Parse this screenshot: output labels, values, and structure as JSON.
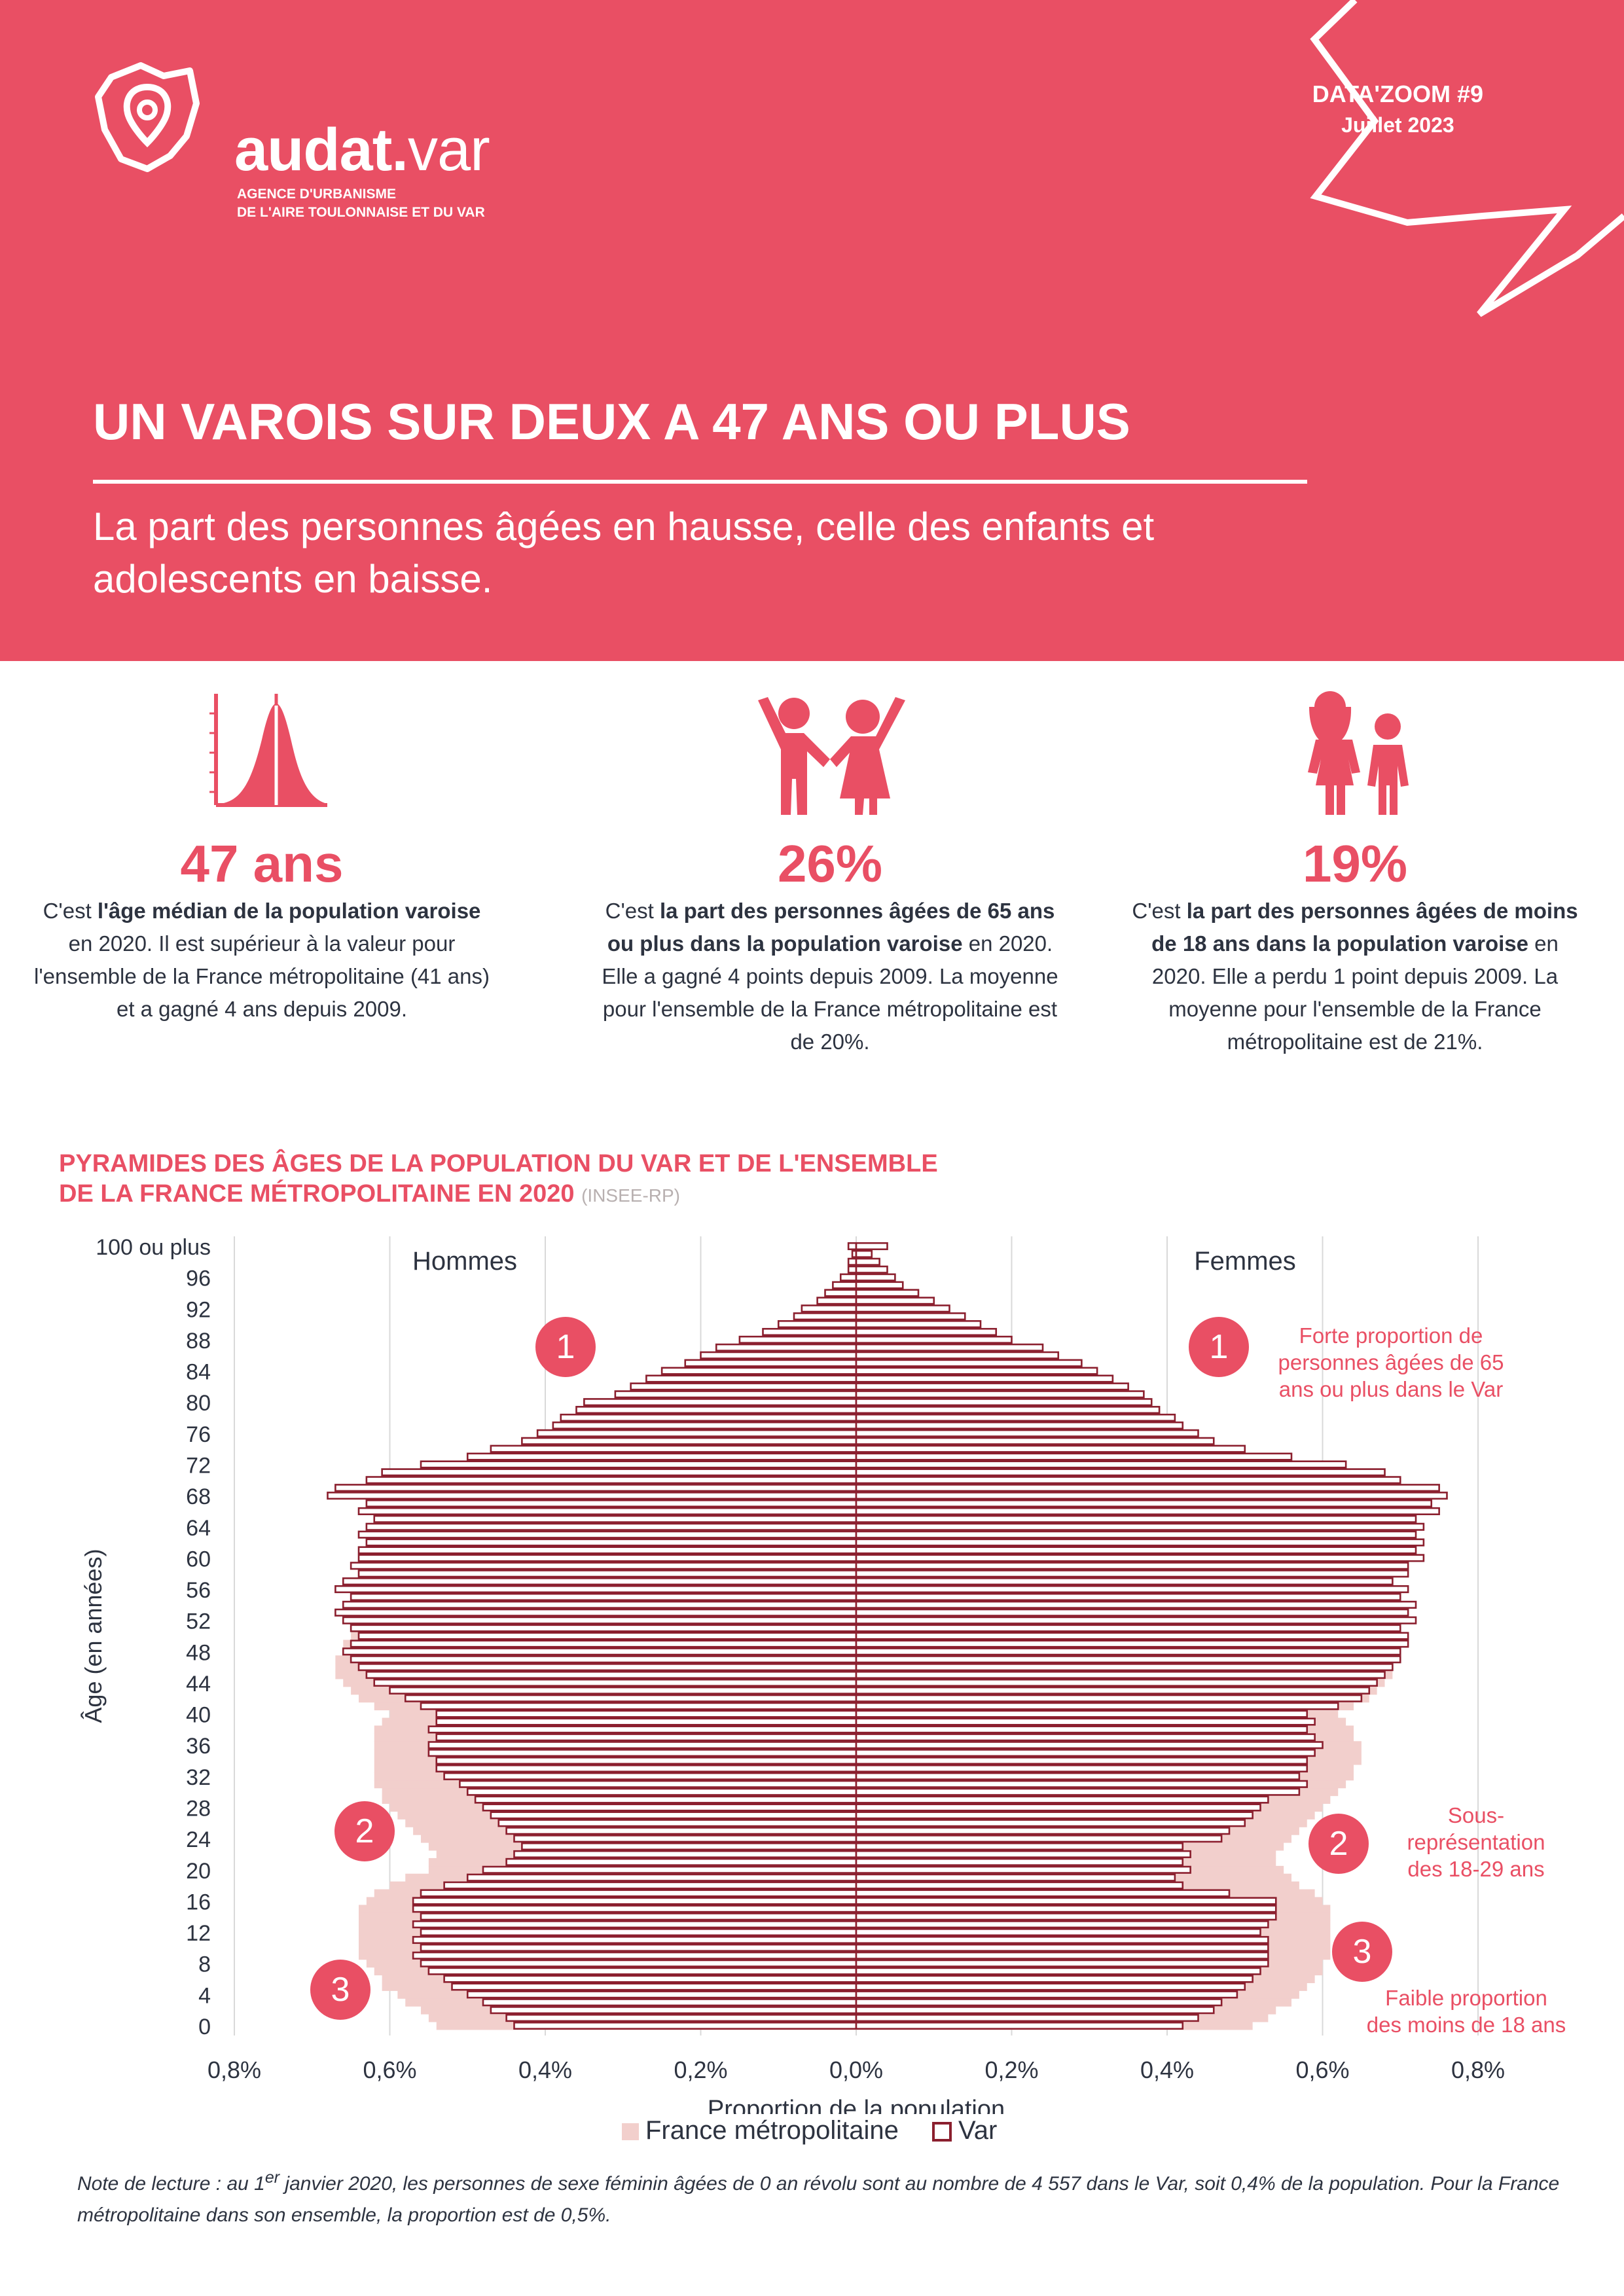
{
  "header": {
    "logo": {
      "name_main": "audat.",
      "name_light": "var",
      "tagline_1": "AGENCE D'URBANISME",
      "tagline_2": "DE L'AIRE TOULONNAISE ET DU VAR",
      "icon": "map-pin-logo-icon"
    },
    "series_label": "DATA'ZOOM #9",
    "date": "Juillet 2023",
    "title": "UN VAROIS SUR DEUX A 47 ANS OU PLUS",
    "subtitle": "La part des personnes âgées en hausse, celle des enfants et adolescents en baisse."
  },
  "stats": [
    {
      "icon": "distribution-curve-icon",
      "value": "47 ans",
      "pre": "C'est ",
      "bold": "l'âge médian de la population varoise",
      "post": " en 2020. Il est supérieur à la valeur pour l'ensemble de la France métropolitaine (41 ans) et a gagné 4 ans depuis 2009."
    },
    {
      "icon": "elderly-couple-icon",
      "value": "26%",
      "pre": "C'est ",
      "bold": "la part des personnes âgées de 65 ans ou plus dans la population varoise",
      "post": " en 2020. Elle a gagné 4 points depuis 2009. La moyenne pour l'ensemble de la France métropolitaine est de 20%."
    },
    {
      "icon": "children-icon",
      "value": "19%",
      "pre": "C'est ",
      "bold": "la part des personnes âgées de moins de 18 ans dans la population varoise",
      "post": " en 2020. Elle a perdu 1 point depuis 2009. La moyenne pour l'ensemble de la France métropolitaine est de 21%."
    }
  ],
  "chart_title": {
    "line1": "PYRAMIDES DES ÂGES DE LA POPULATION DU VAR ET DE L'ENSEMBLE",
    "line2": "DE LA FRANCE MÉTROPOLITAINE EN 2020",
    "source": "(INSEE-RP)"
  },
  "colors": {
    "accent": "#e94f64",
    "france_fill": "#f2cfcc",
    "var_outline": "#8b1f2e",
    "text": "#2d3340"
  },
  "chart_data": {
    "type": "bar",
    "orientation": "horizontal-pyramid",
    "xlabel": "Proportion de la population",
    "ylabel": "Âge (en années)",
    "xlim": [
      -0.8,
      0.8
    ],
    "x_ticks": [
      "0,8%",
      "0,6%",
      "0,4%",
      "0,2%",
      "0,0%",
      "0,2%",
      "0,4%",
      "0,6%",
      "0,8%"
    ],
    "y_ticks": [
      "0",
      "4",
      "8",
      "12",
      "16",
      "20",
      "24",
      "28",
      "32",
      "36",
      "40",
      "44",
      "48",
      "52",
      "56",
      "60",
      "64",
      "68",
      "72",
      "76",
      "80",
      "84",
      "88",
      "92",
      "96",
      "100 ou plus"
    ],
    "left_label": "Hommes",
    "right_label": "Femmes",
    "grid": true,
    "legend": "bottom-center",
    "legend_entries": [
      "France métropolitaine",
      "Var"
    ],
    "ages": [
      0,
      1,
      2,
      3,
      4,
      5,
      6,
      7,
      8,
      9,
      10,
      11,
      12,
      13,
      14,
      15,
      16,
      17,
      18,
      19,
      20,
      21,
      22,
      23,
      24,
      25,
      26,
      27,
      28,
      29,
      30,
      31,
      32,
      33,
      34,
      35,
      36,
      37,
      38,
      39,
      40,
      41,
      42,
      43,
      44,
      45,
      46,
      47,
      48,
      49,
      50,
      51,
      52,
      53,
      54,
      55,
      56,
      57,
      58,
      59,
      60,
      61,
      62,
      63,
      64,
      65,
      66,
      67,
      68,
      69,
      70,
      71,
      72,
      73,
      74,
      75,
      76,
      77,
      78,
      79,
      80,
      81,
      82,
      83,
      84,
      85,
      86,
      87,
      88,
      89,
      90,
      91,
      92,
      93,
      94,
      95,
      96,
      97,
      98,
      99,
      100
    ],
    "series": [
      {
        "name": "France métropolitaine - Hommes",
        "values": [
          0.54,
          0.55,
          0.56,
          0.58,
          0.59,
          0.61,
          0.61,
          0.62,
          0.63,
          0.64,
          0.64,
          0.64,
          0.64,
          0.64,
          0.64,
          0.64,
          0.63,
          0.62,
          0.6,
          0.58,
          0.55,
          0.55,
          0.54,
          0.55,
          0.56,
          0.57,
          0.58,
          0.59,
          0.6,
          0.61,
          0.61,
          0.62,
          0.62,
          0.62,
          0.62,
          0.62,
          0.62,
          0.62,
          0.62,
          0.61,
          0.6,
          0.62,
          0.64,
          0.65,
          0.66,
          0.67,
          0.67,
          0.67,
          0.66,
          0.66,
          0.65,
          0.65,
          0.64,
          0.64,
          0.63,
          0.62,
          0.62,
          0.61,
          0.6,
          0.59,
          0.58,
          0.57,
          0.56,
          0.55,
          0.54,
          0.53,
          0.52,
          0.51,
          0.5,
          0.5,
          0.49,
          0.48,
          0.46,
          0.43,
          0.39,
          0.35,
          0.31,
          0.29,
          0.28,
          0.27,
          0.25,
          0.23,
          0.21,
          0.19,
          0.17,
          0.15,
          0.13,
          0.11,
          0.09,
          0.07,
          0.05,
          0.04,
          0.03,
          0.02,
          0.015,
          0.01,
          0.007,
          0.004,
          0.002,
          0.001,
          0.001
        ]
      },
      {
        "name": "France métropolitaine - Femmes",
        "values": [
          0.51,
          0.53,
          0.54,
          0.56,
          0.57,
          0.58,
          0.59,
          0.6,
          0.6,
          0.61,
          0.61,
          0.61,
          0.61,
          0.61,
          0.61,
          0.61,
          0.6,
          0.59,
          0.57,
          0.56,
          0.55,
          0.54,
          0.54,
          0.55,
          0.56,
          0.57,
          0.58,
          0.59,
          0.6,
          0.61,
          0.62,
          0.63,
          0.64,
          0.64,
          0.65,
          0.65,
          0.65,
          0.64,
          0.64,
          0.63,
          0.62,
          0.64,
          0.66,
          0.67,
          0.68,
          0.69,
          0.69,
          0.69,
          0.68,
          0.68,
          0.68,
          0.68,
          0.67,
          0.67,
          0.66,
          0.65,
          0.65,
          0.64,
          0.63,
          0.62,
          0.62,
          0.61,
          0.6,
          0.6,
          0.59,
          0.58,
          0.57,
          0.57,
          0.56,
          0.55,
          0.55,
          0.54,
          0.52,
          0.49,
          0.45,
          0.41,
          0.38,
          0.36,
          0.35,
          0.34,
          0.33,
          0.31,
          0.3,
          0.28,
          0.26,
          0.24,
          0.22,
          0.2,
          0.17,
          0.15,
          0.12,
          0.1,
          0.08,
          0.06,
          0.045,
          0.033,
          0.023,
          0.015,
          0.01,
          0.006,
          0.008
        ]
      },
      {
        "name": "Var - Hommes",
        "values": [
          0.44,
          0.45,
          0.47,
          0.48,
          0.5,
          0.52,
          0.53,
          0.55,
          0.56,
          0.57,
          0.56,
          0.57,
          0.56,
          0.57,
          0.56,
          0.57,
          0.57,
          0.56,
          0.53,
          0.5,
          0.48,
          0.45,
          0.44,
          0.43,
          0.44,
          0.45,
          0.46,
          0.47,
          0.48,
          0.49,
          0.5,
          0.51,
          0.53,
          0.54,
          0.54,
          0.55,
          0.55,
          0.54,
          0.55,
          0.54,
          0.54,
          0.56,
          0.58,
          0.6,
          0.62,
          0.63,
          0.64,
          0.65,
          0.66,
          0.65,
          0.64,
          0.65,
          0.66,
          0.67,
          0.66,
          0.65,
          0.67,
          0.66,
          0.64,
          0.65,
          0.64,
          0.64,
          0.63,
          0.64,
          0.63,
          0.62,
          0.64,
          0.63,
          0.68,
          0.67,
          0.63,
          0.61,
          0.56,
          0.5,
          0.47,
          0.43,
          0.41,
          0.39,
          0.38,
          0.36,
          0.35,
          0.31,
          0.29,
          0.27,
          0.25,
          0.22,
          0.2,
          0.18,
          0.15,
          0.12,
          0.1,
          0.08,
          0.07,
          0.05,
          0.04,
          0.03,
          0.02,
          0.01,
          0.01,
          0.005,
          0.01
        ]
      },
      {
        "name": "Var - Femmes",
        "values": [
          0.42,
          0.44,
          0.46,
          0.47,
          0.49,
          0.5,
          0.51,
          0.52,
          0.53,
          0.53,
          0.53,
          0.53,
          0.52,
          0.53,
          0.54,
          0.54,
          0.54,
          0.48,
          0.42,
          0.41,
          0.43,
          0.42,
          0.43,
          0.42,
          0.47,
          0.48,
          0.5,
          0.51,
          0.52,
          0.53,
          0.57,
          0.58,
          0.57,
          0.58,
          0.58,
          0.59,
          0.6,
          0.59,
          0.58,
          0.59,
          0.58,
          0.62,
          0.65,
          0.66,
          0.67,
          0.68,
          0.69,
          0.7,
          0.7,
          0.71,
          0.71,
          0.7,
          0.72,
          0.71,
          0.72,
          0.7,
          0.71,
          0.69,
          0.71,
          0.71,
          0.73,
          0.72,
          0.73,
          0.72,
          0.73,
          0.72,
          0.75,
          0.74,
          0.76,
          0.75,
          0.7,
          0.68,
          0.63,
          0.56,
          0.5,
          0.46,
          0.44,
          0.42,
          0.41,
          0.39,
          0.38,
          0.37,
          0.35,
          0.33,
          0.31,
          0.29,
          0.26,
          0.24,
          0.2,
          0.18,
          0.16,
          0.14,
          0.12,
          0.1,
          0.08,
          0.06,
          0.05,
          0.04,
          0.03,
          0.02,
          0.04
        ]
      }
    ],
    "annotations": [
      {
        "number": "1",
        "text_lines": [
          "Forte proportion de",
          "personnes âgées de 65",
          "ans ou plus dans le Var"
        ]
      },
      {
        "number": "2",
        "text_lines": [
          "Sous-",
          "représentation",
          "des 18-29 ans"
        ]
      },
      {
        "number": "3",
        "text_lines": [
          "Faible proportion",
          "des moins de 18 ans"
        ]
      }
    ]
  },
  "note": {
    "prefix": "Note de lecture : au 1",
    "sup": "er",
    "rest": " janvier 2020, les personnes de sexe féminin âgées de 0 an révolu sont au nombre de 4 557 dans le Var, soit 0,4% de la population. Pour la France métropolitaine dans son ensemble, la proportion est de 0,5%."
  }
}
